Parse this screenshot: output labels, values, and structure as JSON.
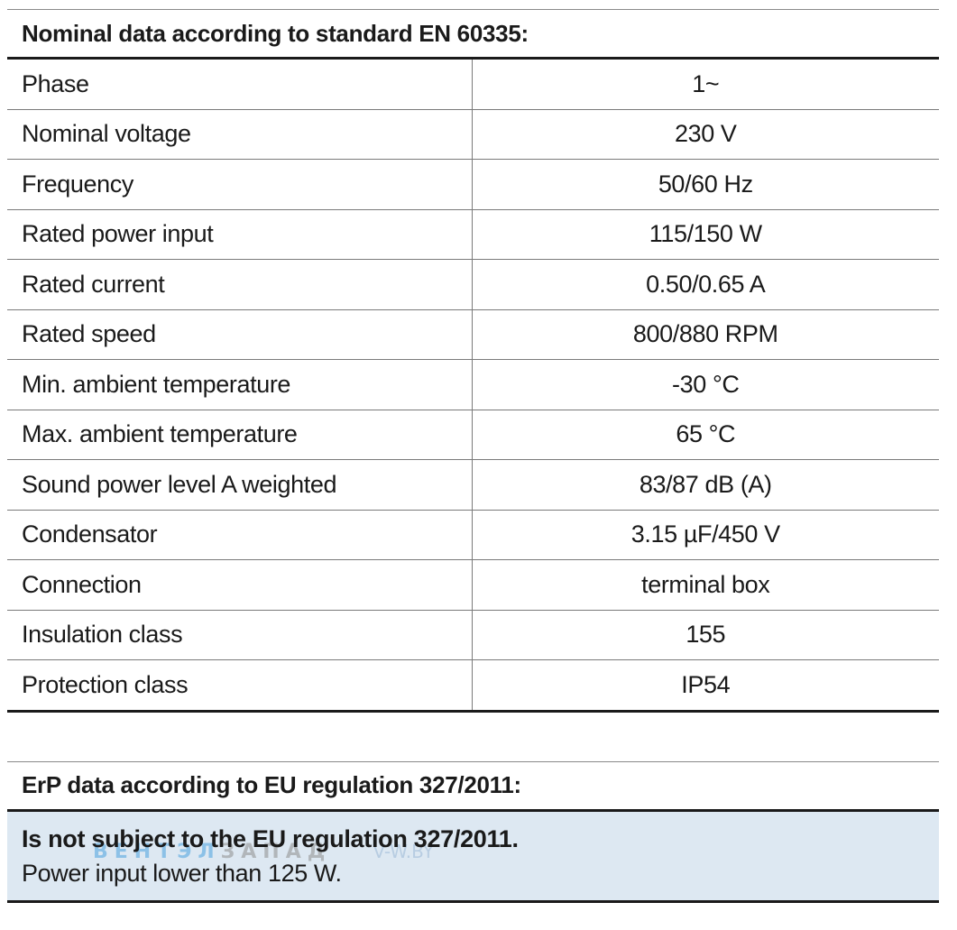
{
  "nominal": {
    "header": "Nominal data according to standard EN 60335:",
    "rows": [
      {
        "label": "Phase",
        "value": "1~"
      },
      {
        "label": "Nominal voltage",
        "value": "230 V"
      },
      {
        "label": "Frequency",
        "value": "50/60 Hz"
      },
      {
        "label": "Rated power input",
        "value": "115/150 W"
      },
      {
        "label": "Rated current",
        "value": "0.50/0.65 A"
      },
      {
        "label": "Rated speed",
        "value": "800/880 RPM"
      },
      {
        "label": "Min. ambient temperature",
        "value": "-30 °C"
      },
      {
        "label": "Max. ambient temperature",
        "value": "65 °C"
      },
      {
        "label": "Sound power level A weighted",
        "value": "83/87 dB (A)"
      },
      {
        "label": "Condensator",
        "value": "3.15 µF/450 V"
      },
      {
        "label": "Connection",
        "value": "terminal box"
      },
      {
        "label": "Insulation class",
        "value": "155"
      },
      {
        "label": "Protection class",
        "value": "IP54"
      }
    ]
  },
  "erp": {
    "header": "ErP data according to EU regulation 327/2011:",
    "title": "Is not subject to the EU regulation 327/2011.",
    "note": "Power input lower than 125 W."
  },
  "watermark": {
    "part1": "ВЕНТЭЛ",
    "part2": "ЗАПАД",
    "site": "V-W.BY"
  },
  "colors": {
    "erp_background": "#dde8f2",
    "watermark_blue": "#4aa3df"
  }
}
